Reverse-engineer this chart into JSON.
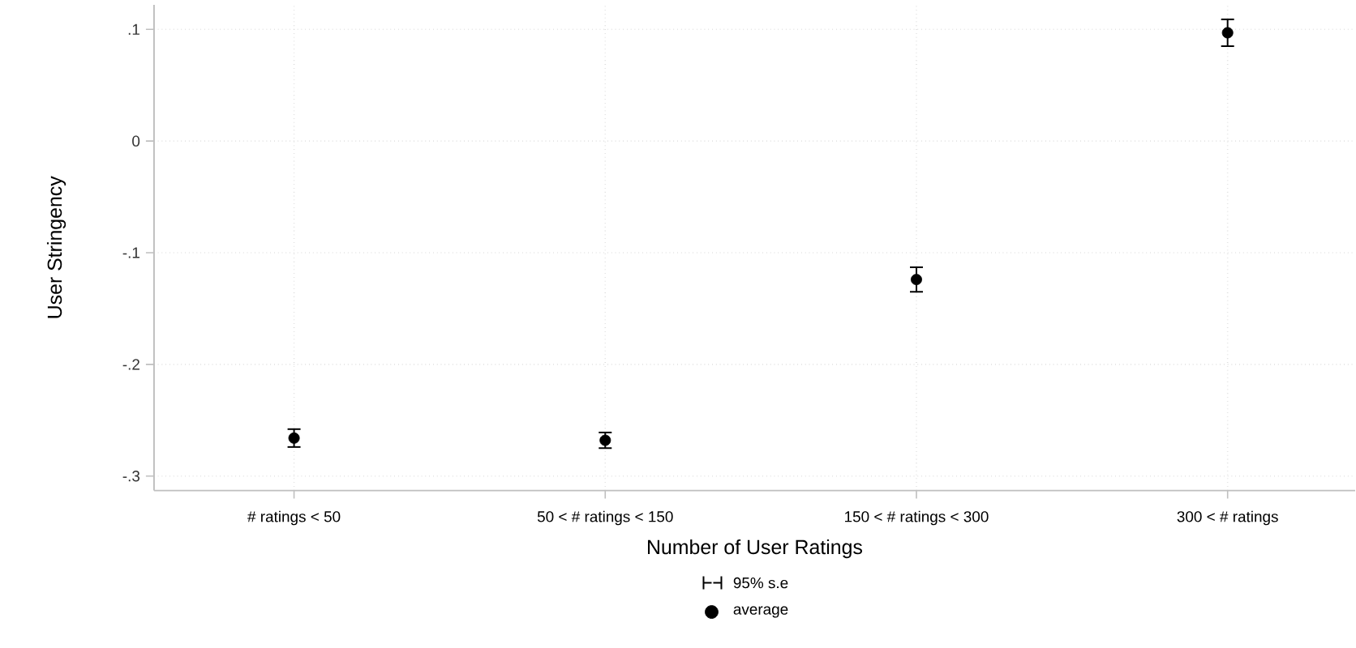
{
  "chart_data": {
    "type": "scatter",
    "xlabel": "Number of User Ratings",
    "ylabel": "User Stringency",
    "categories": [
      "# ratings < 50",
      "50 < # ratings < 150",
      "150 < # ratings < 300",
      "300 < # ratings"
    ],
    "series": [
      {
        "name": "average",
        "color": "#000000",
        "values": [
          -0.266,
          -0.268,
          -0.124,
          0.097
        ],
        "errors": [
          0.008,
          0.007,
          0.011,
          0.012
        ]
      }
    ],
    "annotations": [
      "95% s.e"
    ],
    "ylim": [
      -0.313,
      0.122
    ],
    "yticks": [
      {
        "value": -0.3,
        "label": "-.3"
      },
      {
        "value": -0.2,
        "label": "-.2"
      },
      {
        "value": -0.1,
        "label": "-.1"
      },
      0,
      {
        "value": 0.1,
        "label": ".1"
      }
    ],
    "grid": true,
    "legend": "bottom",
    "marker": "circle"
  }
}
